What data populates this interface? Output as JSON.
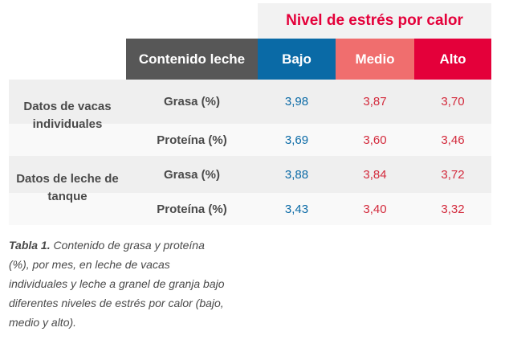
{
  "table": {
    "super_header": "Nivel de estrés por calor",
    "headers": {
      "contenido": "Contenido leche",
      "bajo": "Bajo",
      "medio": "Medio",
      "alto": "Alto"
    },
    "groups": [
      {
        "label": "Datos de vacas individuales",
        "rows": [
          {
            "metric": "Grasa (%)",
            "bajo": "3,98",
            "medio": "3,87",
            "alto": "3,70"
          },
          {
            "metric": "Proteína (%)",
            "bajo": "3,69",
            "medio": "3,60",
            "alto": "3,46"
          }
        ]
      },
      {
        "label": "Datos de leche de tanque",
        "rows": [
          {
            "metric": "Grasa (%)",
            "bajo": "3,88",
            "medio": "3,84",
            "alto": "3,72"
          },
          {
            "metric": "Proteína (%)",
            "bajo": "3,43",
            "medio": "3,40",
            "alto": "3,32"
          }
        ]
      }
    ]
  },
  "caption": {
    "label": "Tabla 1.",
    "text": "Contenido de grasa y proteína (%), por mes, en leche de vacas individuales y leche a granel de granja bajo diferentes niveles de estrés por calor (bajo, medio y alto)."
  },
  "colors": {
    "bajo": "#0a6aa6",
    "medio": "#f06e6e",
    "alto": "#e4003a",
    "header_dark": "#575757",
    "row_shade": "#efefef",
    "row_light": "#f9f9f9"
  }
}
